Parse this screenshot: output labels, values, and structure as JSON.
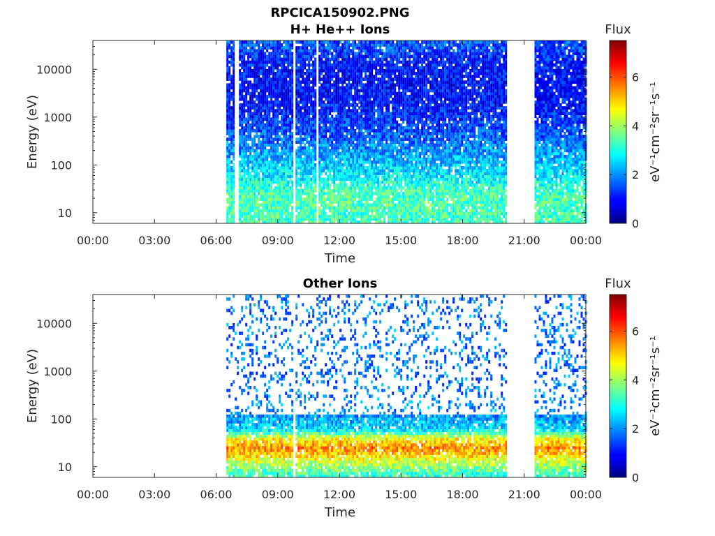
{
  "figure_title": "RPCICA150902.PNG",
  "chart_data": [
    {
      "type": "heatmap",
      "title": "H+ He++ Ions",
      "xlabel": "Time",
      "ylabel": "Energy (eV)",
      "x_ticks": [
        "00:00",
        "03:00",
        "06:00",
        "09:00",
        "12:00",
        "15:00",
        "18:00",
        "21:00",
        "00:00"
      ],
      "xlim_hours": [
        0,
        24
      ],
      "y_scale": "log",
      "y_ticks": [
        "10",
        "100",
        "1000",
        "10000"
      ],
      "ylim": [
        6,
        40000
      ],
      "colorbar": {
        "label": "Flux",
        "unit": "eV⁻¹cm⁻²sr⁻¹s⁻¹",
        "ticks": [
          "0",
          "2",
          "4",
          "6"
        ],
        "range": [
          0,
          7.5
        ]
      },
      "data_intervals_hours": [
        [
          6.5,
          20.1
        ],
        [
          21.5,
          24
        ]
      ],
      "gaps_hours": [
        6.95,
        9.75,
        10.9
      ],
      "energy_profile": [
        {
          "e": 8,
          "flux": 3.3
        },
        {
          "e": 20,
          "flux": 3.4
        },
        {
          "e": 35,
          "flux": 3.2
        },
        {
          "e": 60,
          "flux": 2.7
        },
        {
          "e": 150,
          "flux": 2.2
        },
        {
          "e": 400,
          "flux": 1.6
        },
        {
          "e": 1500,
          "flux": 1.1
        },
        {
          "e": 5000,
          "flux": 1.0
        },
        {
          "e": 15000,
          "flux": 1.1
        },
        {
          "e": 30000,
          "flux": 1.5
        }
      ]
    },
    {
      "type": "heatmap",
      "title": "Other Ions",
      "xlabel": "Time",
      "ylabel": "Energy (eV)",
      "x_ticks": [
        "00:00",
        "03:00",
        "06:00",
        "09:00",
        "12:00",
        "15:00",
        "18:00",
        "21:00",
        "00:00"
      ],
      "xlim_hours": [
        0,
        24
      ],
      "y_scale": "log",
      "y_ticks": [
        "10",
        "100",
        "1000",
        "10000"
      ],
      "ylim": [
        6,
        40000
      ],
      "colorbar": {
        "label": "Flux",
        "unit": "eV⁻¹cm⁻²sr⁻¹s⁻¹",
        "ticks": [
          "0",
          "2",
          "4",
          "6"
        ],
        "range": [
          0,
          7.5
        ]
      },
      "data_intervals_hours": [
        [
          6.5,
          20.1
        ],
        [
          21.5,
          24
        ]
      ],
      "gaps_hours": [
        9.75
      ],
      "energy_profile": [
        {
          "e": 7,
          "flux": 3.2
        },
        {
          "e": 12,
          "flux": 4.2
        },
        {
          "e": 25,
          "flux": 5.6
        },
        {
          "e": 40,
          "flux": 4.6
        },
        {
          "e": 60,
          "flux": 2.6
        },
        {
          "e": 120,
          "flux": 2.0
        },
        {
          "e": 500,
          "flux": 1.8
        },
        {
          "e": 10000,
          "flux": 1.8
        }
      ]
    }
  ]
}
